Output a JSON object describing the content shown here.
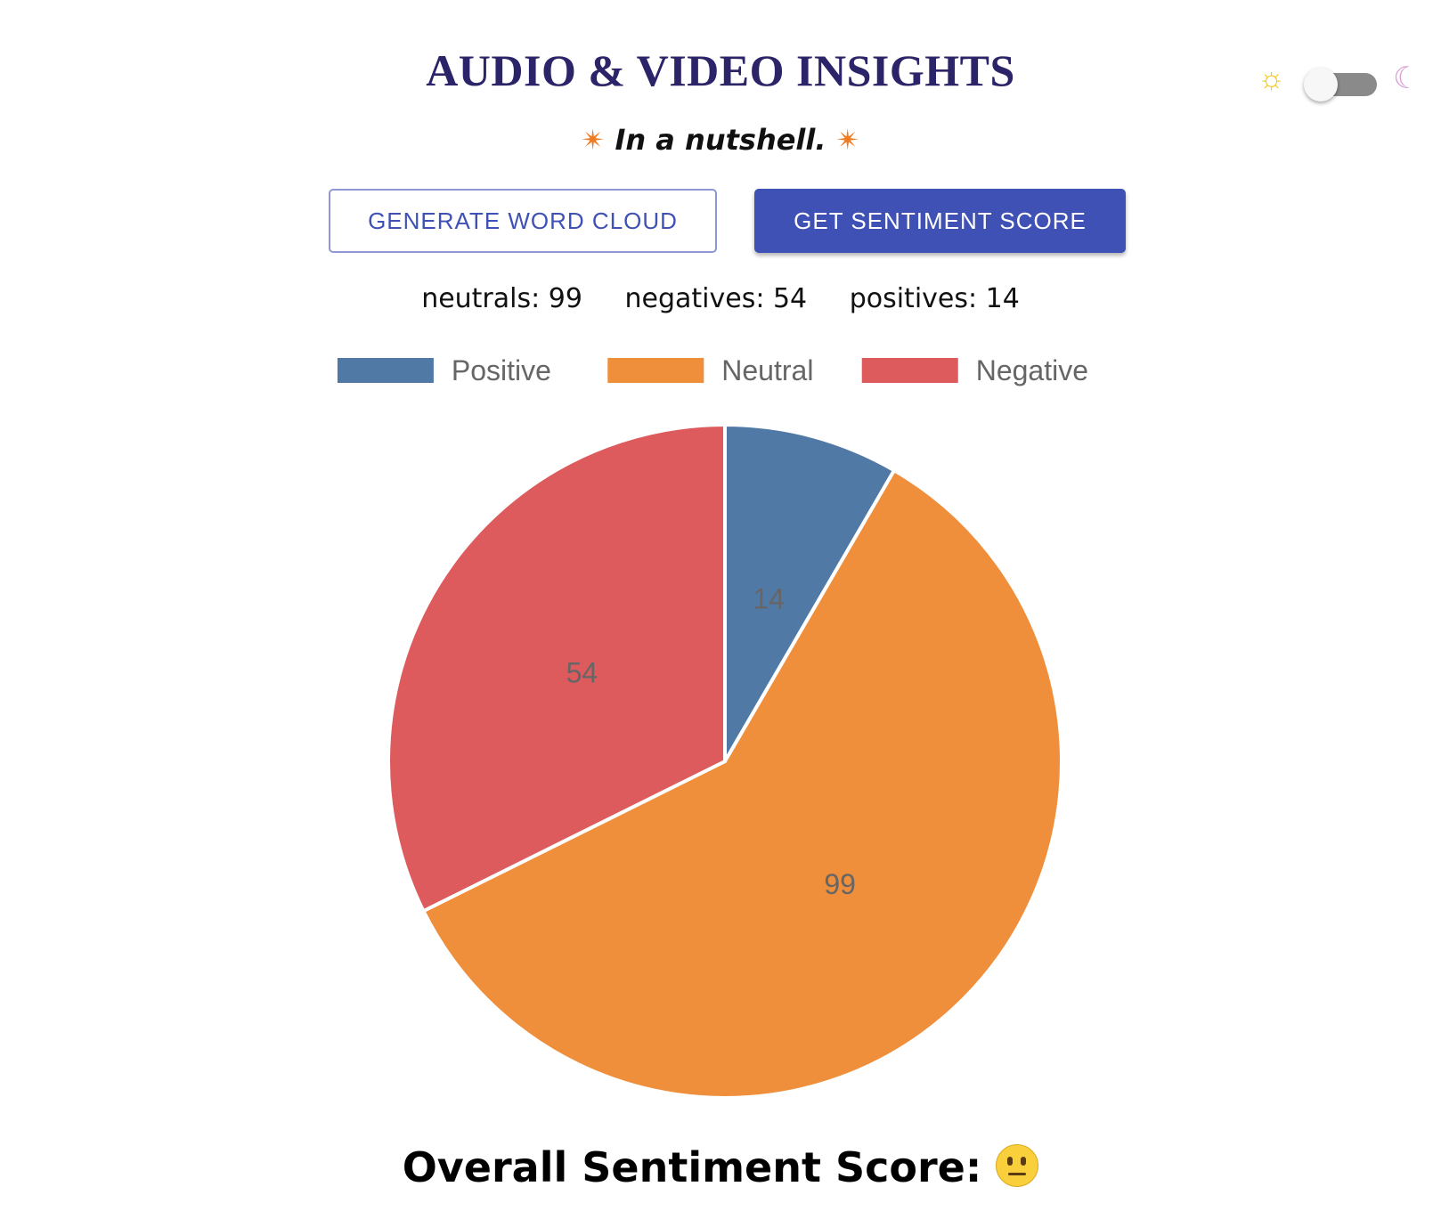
{
  "header": {
    "title": "AUDIO & VIDEO INSIGHTS",
    "subtitle": "In a nutshell.",
    "spark_icon": "✴"
  },
  "theme_toggle": {
    "sun_icon": "☼",
    "moon_icon": "☾",
    "mode": "light"
  },
  "buttons": {
    "word_cloud": "GENERATE WORD CLOUD",
    "sentiment": "GET SENTIMENT SCORE"
  },
  "counts": [
    {
      "label": "neutrals: 99"
    },
    {
      "label": "negatives: 54"
    },
    {
      "label": "positives: 14"
    }
  ],
  "chart_data": {
    "type": "pie",
    "categories": [
      "Positive",
      "Neutral",
      "Negative"
    ],
    "values": [
      14,
      99,
      54
    ],
    "colors": [
      "#5079a5",
      "#ef8e3b",
      "#dd5a5d"
    ],
    "legend": "top"
  },
  "overall": {
    "label": "Overall Sentiment Score:",
    "emoji": "neutral-face"
  }
}
